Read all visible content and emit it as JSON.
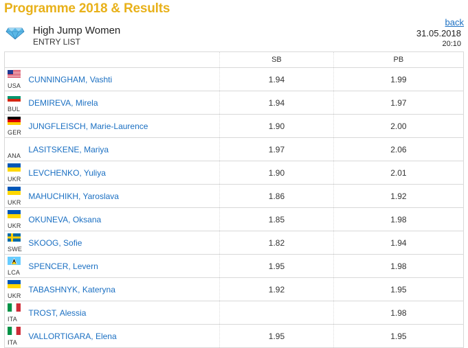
{
  "page": {
    "title": "Programme 2018 & Results",
    "back_label": "back"
  },
  "event": {
    "name": "High Jump Women",
    "subtitle": "ENTRY LIST",
    "date": "31.05.2018",
    "time": "20:10"
  },
  "table": {
    "columns": {
      "sb": "SB",
      "pb": "PB"
    },
    "rows": [
      {
        "country": "USA",
        "flag": "flag-usa-icon",
        "name": "CUNNINGHAM, Vashti",
        "sb": "1.94",
        "pb": "1.99"
      },
      {
        "country": "BUL",
        "flag": "flag-bul-icon",
        "name": "DEMIREVA, Mirela",
        "sb": "1.94",
        "pb": "1.97"
      },
      {
        "country": "GER",
        "flag": "flag-ger-icon",
        "name": "JUNGFLEISCH, Marie-Laurence",
        "sb": "1.90",
        "pb": "2.00"
      },
      {
        "country": "ANA",
        "flag": "",
        "name": "LASITSKENE, Mariya",
        "sb": "1.97",
        "pb": "2.06"
      },
      {
        "country": "UKR",
        "flag": "flag-ukr-icon",
        "name": "LEVCHENKO, Yuliya",
        "sb": "1.90",
        "pb": "2.01"
      },
      {
        "country": "UKR",
        "flag": "flag-ukr-icon",
        "name": "MAHUCHIKH, Yaroslava",
        "sb": "1.86",
        "pb": "1.92"
      },
      {
        "country": "UKR",
        "flag": "flag-ukr-icon",
        "name": "OKUNEVA, Oksana",
        "sb": "1.85",
        "pb": "1.98"
      },
      {
        "country": "SWE",
        "flag": "flag-swe-icon",
        "name": "SKOOG, Sofie",
        "sb": "1.82",
        "pb": "1.94"
      },
      {
        "country": "LCA",
        "flag": "flag-lca-icon",
        "name": "SPENCER, Levern",
        "sb": "1.95",
        "pb": "1.98"
      },
      {
        "country": "UKR",
        "flag": "flag-ukr-icon",
        "name": "TABASHNYK, Kateryna",
        "sb": "1.92",
        "pb": "1.95"
      },
      {
        "country": "ITA",
        "flag": "flag-ita-icon",
        "name": "TROST, Alessia",
        "sb": "",
        "pb": "1.98"
      },
      {
        "country": "ITA",
        "flag": "flag-ita-icon",
        "name": "VALLORTIGARA, Elena",
        "sb": "1.95",
        "pb": "1.95"
      }
    ]
  }
}
